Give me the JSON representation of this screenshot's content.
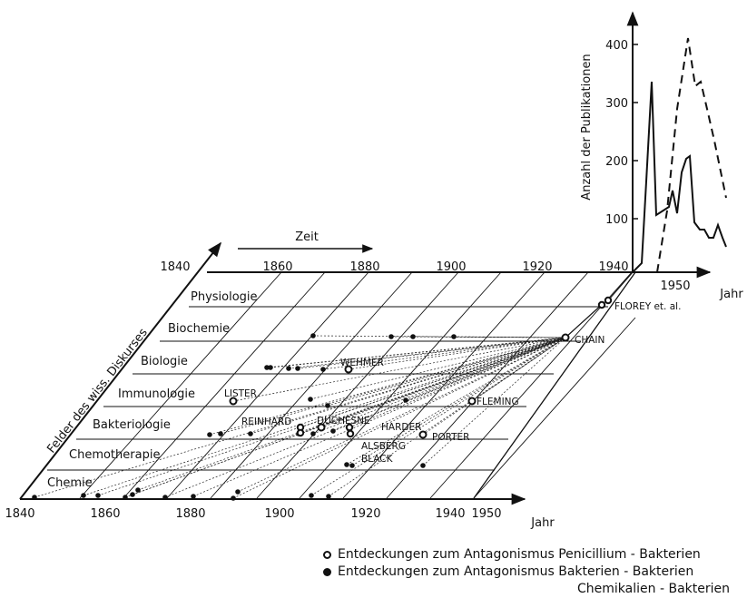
{
  "diagram": {
    "front_axis": {
      "ticks": [
        "1840",
        "1860",
        "1880",
        "1900",
        "1920",
        "1940",
        "1950"
      ],
      "label": "Jahr"
    },
    "back_axis": {
      "ticks": [
        "1840",
        "1860",
        "1880",
        "1900",
        "1920",
        "1940",
        "1950"
      ],
      "label": "Jahr"
    },
    "time_arrow_label": "Zeit",
    "field_axis_label": "Felder des wiss. Diskurses",
    "fields": [
      "Physiologie",
      "Biochemie",
      "Biologie",
      "Immunologie",
      "Bakteriologie",
      "Chemotherapie",
      "Chemie"
    ],
    "inset": {
      "ylabel": "Anzahl der Publikationen",
      "yticks": [
        "100",
        "200",
        "300",
        "400"
      ]
    },
    "markers": {
      "open": [
        {
          "label": "FLOREY et. al."
        },
        {
          "label": "CHAIN"
        },
        {
          "label": "WEHMER"
        },
        {
          "label": "LISTER"
        },
        {
          "label": "FLEMING"
        },
        {
          "label": "REINHARD"
        },
        {
          "label": "DUCHESNE"
        },
        {
          "label": "HARDER"
        },
        {
          "label": "PORTER"
        },
        {
          "label": "ALSBERG"
        },
        {
          "label": "BLACK"
        }
      ]
    }
  },
  "legend": {
    "open": "Entdeckungen zum Antagonismus Penicillium - Bakterien",
    "filled": "Entdeckungen zum Antagonismus Bakterien - Bakterien",
    "filled_cont": "Chemikalien - Bakterien"
  }
}
